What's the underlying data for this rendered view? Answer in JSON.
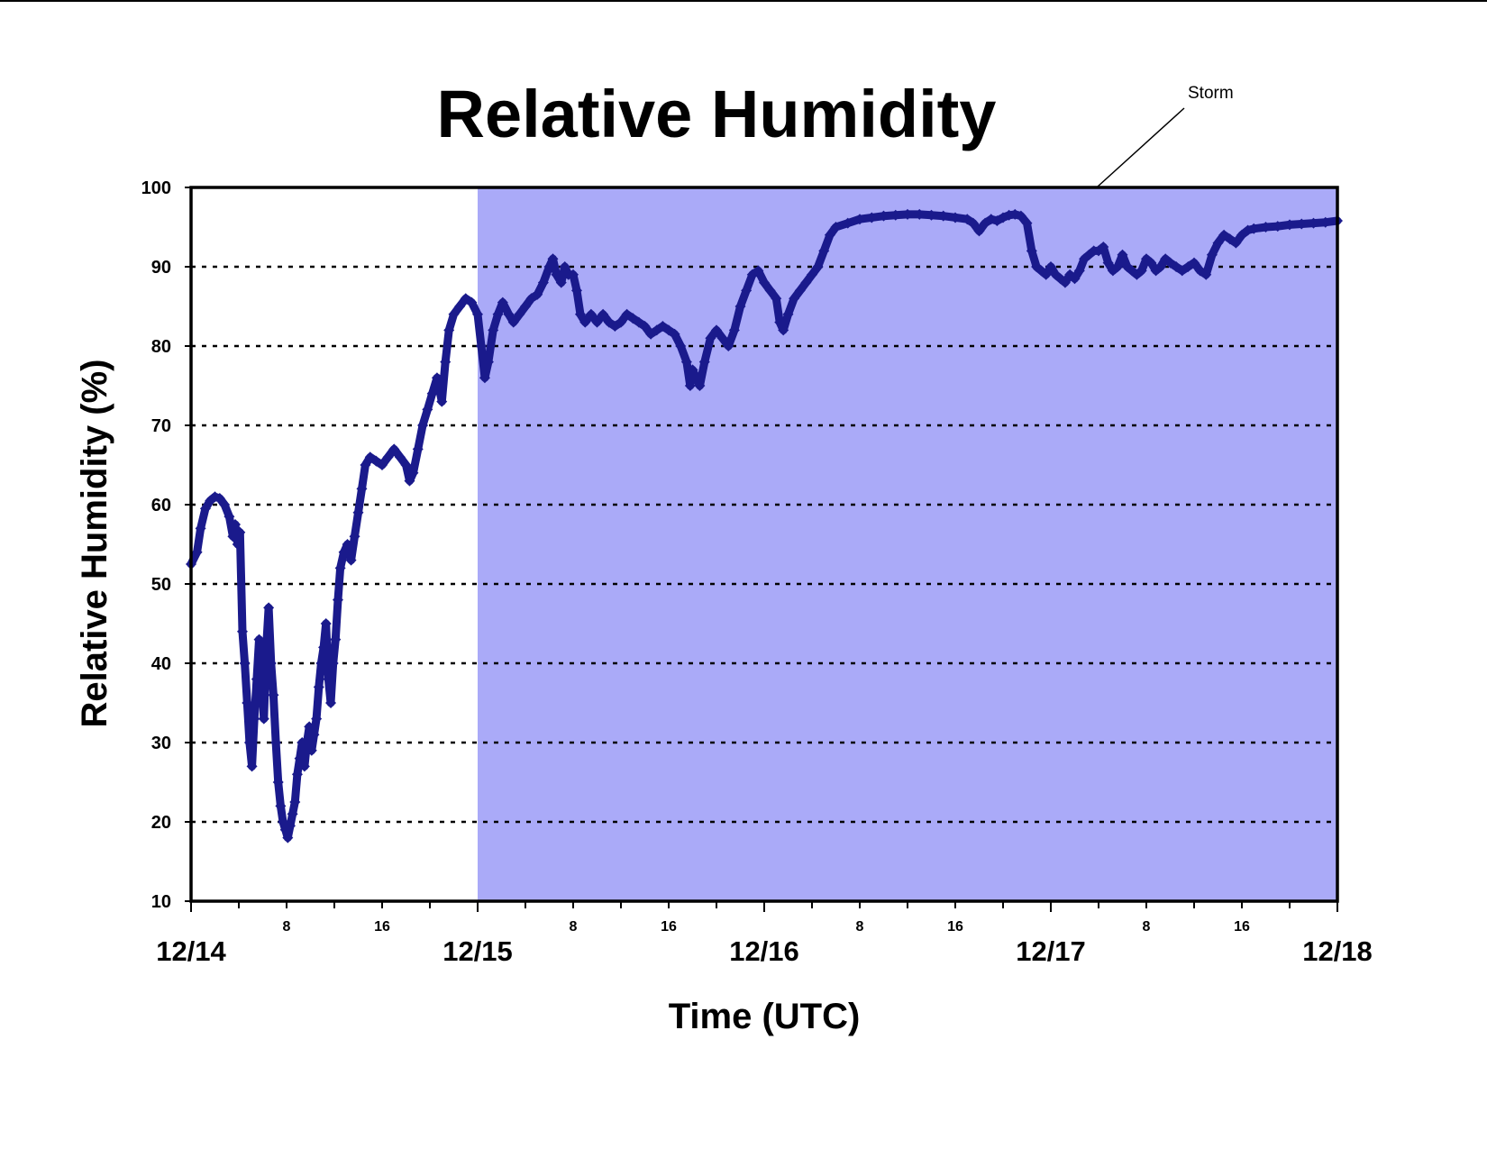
{
  "chart_data": {
    "type": "scatter",
    "title": "Relative Humidity",
    "xlabel": "Time (UTC)",
    "ylabel": "Relative Humidity (%)",
    "ylim": [
      10,
      100
    ],
    "yticks": [
      "10",
      "20",
      "30",
      "40",
      "50",
      "60",
      "70",
      "80",
      "90",
      "100"
    ],
    "x_unit": "hours since 12/14 00 UTC",
    "xlim": [
      0,
      96
    ],
    "x_major_ticks": [
      {
        "x": 0,
        "label": "12/14"
      },
      {
        "x": 24,
        "label": "12/15"
      },
      {
        "x": 48,
        "label": "12/16"
      },
      {
        "x": 72,
        "label": "12/17"
      },
      {
        "x": 96,
        "label": "12/18"
      }
    ],
    "x_minor_labels": [
      {
        "x": 8,
        "label": "8"
      },
      {
        "x": 16,
        "label": "16"
      },
      {
        "x": 32,
        "label": "8"
      },
      {
        "x": 40,
        "label": "16"
      },
      {
        "x": 56,
        "label": "8"
      },
      {
        "x": 64,
        "label": "16"
      },
      {
        "x": 80,
        "label": "8"
      },
      {
        "x": 88,
        "label": "16"
      }
    ],
    "grid": "horizontal dotted",
    "shaded_region": {
      "x_start": 24,
      "x_end": 96,
      "color": "#aaaaf8"
    },
    "annotation": {
      "text": "Storm"
    },
    "marker_color": "#1a1a8c",
    "series": [
      {
        "values": [
          [
            0,
            52.5
          ],
          [
            0.5,
            54
          ],
          [
            0.8,
            57
          ],
          [
            1.2,
            59.5
          ],
          [
            1.6,
            60.5
          ],
          [
            2,
            61
          ],
          [
            2.4,
            60.8
          ],
          [
            2.8,
            60
          ],
          [
            3.2,
            58.5
          ],
          [
            3.5,
            56
          ],
          [
            3.7,
            57.5
          ],
          [
            3.9,
            55
          ],
          [
            4.1,
            56.5
          ],
          [
            4.3,
            44
          ],
          [
            4.5,
            40
          ],
          [
            4.7,
            35
          ],
          [
            4.9,
            30
          ],
          [
            5.1,
            27
          ],
          [
            5.3,
            33
          ],
          [
            5.5,
            38
          ],
          [
            5.7,
            43
          ],
          [
            5.9,
            38
          ],
          [
            6.1,
            33
          ],
          [
            6.3,
            42
          ],
          [
            6.5,
            47
          ],
          [
            6.7,
            40
          ],
          [
            6.9,
            36
          ],
          [
            7.1,
            30
          ],
          [
            7.3,
            25
          ],
          [
            7.5,
            22
          ],
          [
            7.7,
            20
          ],
          [
            7.9,
            19
          ],
          [
            8.1,
            18
          ],
          [
            8.3,
            19.5
          ],
          [
            8.5,
            21
          ],
          [
            8.7,
            22.5
          ],
          [
            8.9,
            26
          ],
          [
            9.1,
            28
          ],
          [
            9.3,
            30
          ],
          [
            9.5,
            27
          ],
          [
            9.7,
            30
          ],
          [
            9.9,
            32
          ],
          [
            10.1,
            29
          ],
          [
            10.3,
            31
          ],
          [
            10.5,
            33
          ],
          [
            10.7,
            37
          ],
          [
            10.9,
            40
          ],
          [
            11.1,
            42
          ],
          [
            11.3,
            45
          ],
          [
            11.5,
            38
          ],
          [
            11.7,
            35
          ],
          [
            11.9,
            40
          ],
          [
            12.1,
            43
          ],
          [
            12.3,
            48
          ],
          [
            12.5,
            52
          ],
          [
            12.8,
            54
          ],
          [
            13.1,
            55
          ],
          [
            13.4,
            53
          ],
          [
            13.7,
            56
          ],
          [
            14,
            59
          ],
          [
            14.3,
            62
          ],
          [
            14.6,
            65
          ],
          [
            15,
            66
          ],
          [
            15.5,
            65.5
          ],
          [
            16,
            65
          ],
          [
            16.5,
            66
          ],
          [
            17,
            67
          ],
          [
            17.5,
            66
          ],
          [
            18,
            65
          ],
          [
            18.3,
            63
          ],
          [
            18.6,
            64
          ],
          [
            19,
            67
          ],
          [
            19.4,
            70
          ],
          [
            19.8,
            72
          ],
          [
            20.2,
            74
          ],
          [
            20.6,
            76
          ],
          [
            21,
            73
          ],
          [
            21.3,
            78
          ],
          [
            21.6,
            82
          ],
          [
            22,
            84
          ],
          [
            22.5,
            85
          ],
          [
            23,
            86
          ],
          [
            23.5,
            85.5
          ],
          [
            24,
            84
          ],
          [
            24.3,
            80
          ],
          [
            24.6,
            76
          ],
          [
            24.9,
            78
          ],
          [
            25.3,
            82
          ],
          [
            25.7,
            84
          ],
          [
            26.1,
            85.5
          ],
          [
            26.6,
            84
          ],
          [
            27,
            83
          ],
          [
            27.5,
            84
          ],
          [
            28,
            85
          ],
          [
            28.5,
            86
          ],
          [
            29,
            86.5
          ],
          [
            29.5,
            88
          ],
          [
            30,
            90
          ],
          [
            30.3,
            91
          ],
          [
            30.6,
            89
          ],
          [
            31,
            88
          ],
          [
            31.3,
            90
          ],
          [
            31.6,
            89
          ],
          [
            32,
            89
          ],
          [
            32.3,
            87
          ],
          [
            32.6,
            84
          ],
          [
            33,
            83
          ],
          [
            33.5,
            84
          ],
          [
            34,
            83
          ],
          [
            34.5,
            84
          ],
          [
            35,
            83
          ],
          [
            35.5,
            82.5
          ],
          [
            36,
            83
          ],
          [
            36.5,
            84
          ],
          [
            37,
            83.5
          ],
          [
            37.5,
            83
          ],
          [
            38,
            82.5
          ],
          [
            38.5,
            81.5
          ],
          [
            39,
            82
          ],
          [
            39.5,
            82.5
          ],
          [
            40,
            82
          ],
          [
            40.5,
            81.5
          ],
          [
            41,
            80
          ],
          [
            41.5,
            78
          ],
          [
            41.8,
            75
          ],
          [
            42,
            77
          ],
          [
            42.3,
            76
          ],
          [
            42.6,
            75
          ],
          [
            43,
            78
          ],
          [
            43.5,
            81
          ],
          [
            44,
            82
          ],
          [
            44.5,
            81
          ],
          [
            45,
            80
          ],
          [
            45.5,
            82
          ],
          [
            46,
            85
          ],
          [
            46.5,
            87
          ],
          [
            47,
            89
          ],
          [
            47.5,
            89.5
          ],
          [
            48,
            88
          ],
          [
            48.5,
            87
          ],
          [
            49,
            86
          ],
          [
            49.3,
            83
          ],
          [
            49.6,
            82
          ],
          [
            50,
            84
          ],
          [
            50.5,
            86
          ],
          [
            51,
            87
          ],
          [
            51.5,
            88
          ],
          [
            52,
            89
          ],
          [
            52.5,
            90
          ],
          [
            53,
            92
          ],
          [
            53.5,
            94
          ],
          [
            54,
            95
          ],
          [
            55,
            95.5
          ],
          [
            56,
            96
          ],
          [
            57,
            96.2
          ],
          [
            58,
            96.4
          ],
          [
            59,
            96.5
          ],
          [
            60,
            96.6
          ],
          [
            61,
            96.6
          ],
          [
            62,
            96.5
          ],
          [
            63,
            96.4
          ],
          [
            64,
            96.2
          ],
          [
            65,
            96
          ],
          [
            65.5,
            95.5
          ],
          [
            66,
            94.5
          ],
          [
            66.5,
            95.5
          ],
          [
            67,
            96
          ],
          [
            67.5,
            95.8
          ],
          [
            68,
            96.2
          ],
          [
            68.5,
            96.5
          ],
          [
            69,
            96.6
          ],
          [
            69.5,
            96.4
          ],
          [
            70,
            95.5
          ],
          [
            70.4,
            92
          ],
          [
            70.8,
            90
          ],
          [
            71.2,
            89.5
          ],
          [
            71.6,
            89
          ],
          [
            72,
            90
          ],
          [
            72.4,
            89
          ],
          [
            72.8,
            88.5
          ],
          [
            73.2,
            88
          ],
          [
            73.6,
            89
          ],
          [
            74,
            88.5
          ],
          [
            74.4,
            89.5
          ],
          [
            74.8,
            91
          ],
          [
            75.2,
            91.5
          ],
          [
            75.6,
            92
          ],
          [
            76,
            92
          ],
          [
            76.4,
            92.5
          ],
          [
            76.8,
            90.5
          ],
          [
            77.2,
            89.5
          ],
          [
            77.6,
            90
          ],
          [
            78,
            91.5
          ],
          [
            78.4,
            90
          ],
          [
            78.8,
            89.5
          ],
          [
            79.2,
            89
          ],
          [
            79.6,
            89.5
          ],
          [
            80,
            91
          ],
          [
            80.4,
            90.5
          ],
          [
            80.8,
            89.5
          ],
          [
            81.2,
            90
          ],
          [
            81.6,
            91
          ],
          [
            82,
            90.5
          ],
          [
            82.5,
            90
          ],
          [
            83,
            89.5
          ],
          [
            83.5,
            90
          ],
          [
            84,
            90.5
          ],
          [
            84.5,
            89.5
          ],
          [
            85,
            89
          ],
          [
            85.5,
            91.5
          ],
          [
            86,
            93
          ],
          [
            86.5,
            94
          ],
          [
            87,
            93.5
          ],
          [
            87.5,
            93
          ],
          [
            88,
            94
          ],
          [
            88.5,
            94.6
          ],
          [
            89,
            94.8
          ],
          [
            90,
            95
          ],
          [
            91,
            95.1
          ],
          [
            92,
            95.3
          ],
          [
            93,
            95.4
          ],
          [
            94,
            95.5
          ],
          [
            95,
            95.6
          ],
          [
            96,
            95.8
          ]
        ]
      }
    ]
  }
}
